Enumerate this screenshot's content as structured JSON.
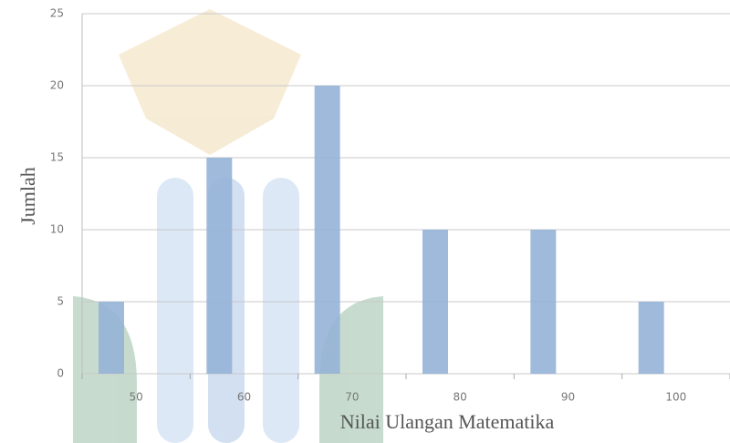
{
  "chart_data": {
    "type": "bar",
    "x_label": "Nilai Ulangan Matematika",
    "y_label": "Jumlah",
    "categories": [
      "50",
      "60",
      "70",
      "80",
      "90",
      "100"
    ],
    "values": [
      5,
      15,
      20,
      10,
      10,
      5
    ],
    "color": "#95b3d7",
    "ylim": [
      0,
      25
    ],
    "yticks": [
      0,
      5,
      10,
      15,
      20,
      25
    ],
    "grid": true
  }
}
